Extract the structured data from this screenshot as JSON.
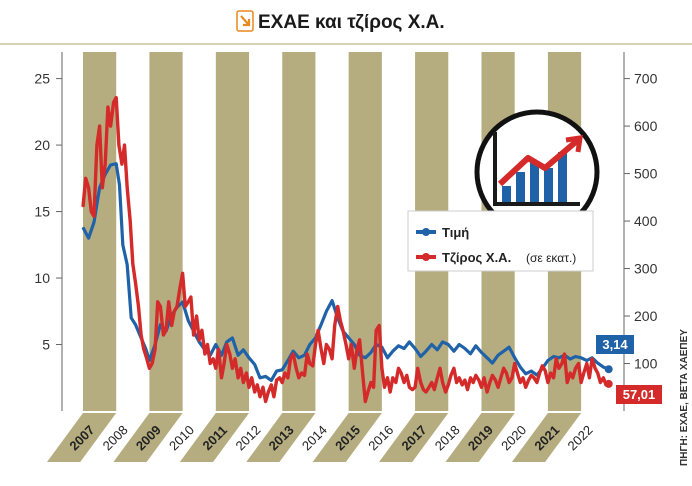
{
  "header": {
    "title": "ΕΧΑΕ και τζίρος Χ.Α.",
    "icon": "arrow-down-right-icon",
    "accent_color": "#e8891e"
  },
  "source_note": "ΠΗΓΗ: ΕΧΑΕ, ΒΕΤΑ ΧΑΕΠΕΥ",
  "legend": [
    {
      "label": "Τιμή",
      "color": "#1f62a8"
    },
    {
      "label": "Τζίρος Χ.Α.",
      "sublabel": "(σε εκατ.)",
      "color": "#d42a2a"
    }
  ],
  "end_labels": {
    "price": {
      "text": "3,14",
      "color": "#1f62a8"
    },
    "turnover": {
      "text": "57,01",
      "color": "#d42a2a"
    }
  },
  "decor_icon": "growth-chart-icon",
  "colors": {
    "stripe": "#b5ad80",
    "year_band": "#b5ad80",
    "price": "#1f62a8",
    "turnover": "#d42a2a",
    "axis_line": "#666666"
  },
  "chart_data": {
    "type": "line",
    "title": "ΕΧΑΕ και τζίρος Χ.Α.",
    "x_categories": [
      "2007",
      "2008",
      "2009",
      "2010",
      "2011",
      "2012",
      "2013",
      "2014",
      "2015",
      "2016",
      "2017",
      "2018",
      "2019",
      "2020",
      "2021",
      "2022"
    ],
    "x_range": [
      2007.0,
      2022.9
    ],
    "y_left": {
      "range": [
        0,
        27
      ],
      "ticks": [
        5,
        10,
        15,
        20,
        25
      ],
      "unit": ""
    },
    "y_right": {
      "range": [
        0,
        756
      ],
      "ticks": [
        100,
        200,
        300,
        400,
        500,
        600,
        700
      ],
      "unit": ""
    },
    "grid": false,
    "legend_position": "right",
    "series": [
      {
        "name": "Τιμή",
        "axis": "left",
        "points": [
          [
            2007.0,
            13.8
          ],
          [
            2007.17,
            13.0
          ],
          [
            2007.33,
            14.2
          ],
          [
            2007.5,
            16.8
          ],
          [
            2007.67,
            17.8
          ],
          [
            2007.83,
            18.5
          ],
          [
            2008.0,
            18.6
          ],
          [
            2008.1,
            17.0
          ],
          [
            2008.2,
            12.5
          ],
          [
            2008.33,
            11.0
          ],
          [
            2008.45,
            7.0
          ],
          [
            2008.58,
            6.5
          ],
          [
            2008.75,
            5.5
          ],
          [
            2008.9,
            4.6
          ],
          [
            2009.0,
            3.8
          ],
          [
            2009.17,
            5.0
          ],
          [
            2009.33,
            6.5
          ],
          [
            2009.5,
            6.0
          ],
          [
            2009.67,
            7.2
          ],
          [
            2009.83,
            7.8
          ],
          [
            2010.0,
            8.2
          ],
          [
            2010.17,
            6.8
          ],
          [
            2010.33,
            6.0
          ],
          [
            2010.5,
            5.2
          ],
          [
            2010.67,
            4.6
          ],
          [
            2010.83,
            4.2
          ],
          [
            2011.0,
            5.0
          ],
          [
            2011.17,
            4.2
          ],
          [
            2011.33,
            5.2
          ],
          [
            2011.5,
            5.5
          ],
          [
            2011.67,
            4.2
          ],
          [
            2011.83,
            4.6
          ],
          [
            2012.0,
            4.0
          ],
          [
            2012.17,
            3.5
          ],
          [
            2012.33,
            2.5
          ],
          [
            2012.5,
            2.6
          ],
          [
            2012.67,
            2.3
          ],
          [
            2012.83,
            3.0
          ],
          [
            2013.0,
            3.1
          ],
          [
            2013.17,
            3.8
          ],
          [
            2013.33,
            4.5
          ],
          [
            2013.5,
            4.0
          ],
          [
            2013.67,
            4.2
          ],
          [
            2013.83,
            5.0
          ],
          [
            2014.0,
            5.5
          ],
          [
            2014.17,
            6.5
          ],
          [
            2014.33,
            7.5
          ],
          [
            2014.5,
            8.3
          ],
          [
            2014.67,
            7.0
          ],
          [
            2014.83,
            6.0
          ],
          [
            2015.0,
            5.5
          ],
          [
            2015.17,
            5.0
          ],
          [
            2015.33,
            4.2
          ],
          [
            2015.5,
            4.0
          ],
          [
            2015.67,
            4.4
          ],
          [
            2015.83,
            5.0
          ],
          [
            2016.0,
            4.8
          ],
          [
            2016.17,
            4.0
          ],
          [
            2016.33,
            4.5
          ],
          [
            2016.5,
            4.9
          ],
          [
            2016.67,
            4.7
          ],
          [
            2016.83,
            5.2
          ],
          [
            2017.0,
            4.7
          ],
          [
            2017.17,
            4.1
          ],
          [
            2017.33,
            4.5
          ],
          [
            2017.5,
            5.0
          ],
          [
            2017.67,
            4.6
          ],
          [
            2017.83,
            5.2
          ],
          [
            2018.0,
            5.0
          ],
          [
            2018.17,
            4.5
          ],
          [
            2018.33,
            5.0
          ],
          [
            2018.5,
            4.7
          ],
          [
            2018.67,
            4.3
          ],
          [
            2018.83,
            4.9
          ],
          [
            2019.0,
            4.4
          ],
          [
            2019.17,
            4.0
          ],
          [
            2019.33,
            3.6
          ],
          [
            2019.5,
            4.2
          ],
          [
            2019.67,
            4.5
          ],
          [
            2019.83,
            4.8
          ],
          [
            2020.0,
            4.0
          ],
          [
            2020.17,
            3.3
          ],
          [
            2020.33,
            2.8
          ],
          [
            2020.5,
            3.0
          ],
          [
            2020.67,
            2.7
          ],
          [
            2020.83,
            3.2
          ],
          [
            2021.0,
            3.8
          ],
          [
            2021.17,
            4.1
          ],
          [
            2021.33,
            4.0
          ],
          [
            2021.5,
            4.2
          ],
          [
            2021.67,
            3.9
          ],
          [
            2021.83,
            4.1
          ],
          [
            2022.0,
            4.0
          ],
          [
            2022.17,
            3.8
          ],
          [
            2022.33,
            4.0
          ],
          [
            2022.5,
            3.6
          ],
          [
            2022.67,
            3.3
          ],
          [
            2022.83,
            3.14
          ]
        ]
      },
      {
        "name": "Τζίρος Χ.Α.",
        "axis": "right",
        "points": [
          [
            2007.0,
            430
          ],
          [
            2007.08,
            490
          ],
          [
            2007.17,
            470
          ],
          [
            2007.25,
            420
          ],
          [
            2007.33,
            410
          ],
          [
            2007.42,
            560
          ],
          [
            2007.5,
            600
          ],
          [
            2007.58,
            470
          ],
          [
            2007.67,
            520
          ],
          [
            2007.75,
            640
          ],
          [
            2007.83,
            600
          ],
          [
            2007.92,
            650
          ],
          [
            2008.0,
            660
          ],
          [
            2008.08,
            560
          ],
          [
            2008.17,
            520
          ],
          [
            2008.25,
            560
          ],
          [
            2008.33,
            470
          ],
          [
            2008.42,
            400
          ],
          [
            2008.5,
            310
          ],
          [
            2008.58,
            270
          ],
          [
            2008.67,
            220
          ],
          [
            2008.75,
            160
          ],
          [
            2008.83,
            130
          ],
          [
            2008.92,
            110
          ],
          [
            2009.0,
            90
          ],
          [
            2009.08,
            100
          ],
          [
            2009.17,
            130
          ],
          [
            2009.25,
            230
          ],
          [
            2009.33,
            220
          ],
          [
            2009.42,
            160
          ],
          [
            2009.5,
            170
          ],
          [
            2009.58,
            230
          ],
          [
            2009.67,
            180
          ],
          [
            2009.75,
            210
          ],
          [
            2009.83,
            220
          ],
          [
            2009.92,
            260
          ],
          [
            2010.0,
            290
          ],
          [
            2010.08,
            220
          ],
          [
            2010.17,
            230
          ],
          [
            2010.25,
            240
          ],
          [
            2010.33,
            160
          ],
          [
            2010.42,
            200
          ],
          [
            2010.5,
            150
          ],
          [
            2010.58,
            170
          ],
          [
            2010.67,
            120
          ],
          [
            2010.75,
            140
          ],
          [
            2010.83,
            100
          ],
          [
            2010.92,
            110
          ],
          [
            2011.0,
            90
          ],
          [
            2011.08,
            130
          ],
          [
            2011.17,
            70
          ],
          [
            2011.25,
            100
          ],
          [
            2011.33,
            140
          ],
          [
            2011.42,
            120
          ],
          [
            2011.5,
            90
          ],
          [
            2011.58,
            110
          ],
          [
            2011.67,
            70
          ],
          [
            2011.75,
            90
          ],
          [
            2011.83,
            60
          ],
          [
            2011.92,
            80
          ],
          [
            2012.0,
            50
          ],
          [
            2012.08,
            70
          ],
          [
            2012.17,
            40
          ],
          [
            2012.25,
            55
          ],
          [
            2012.33,
            30
          ],
          [
            2012.42,
            50
          ],
          [
            2012.5,
            20
          ],
          [
            2012.58,
            40
          ],
          [
            2012.67,
            55
          ],
          [
            2012.75,
            30
          ],
          [
            2012.83,
            65
          ],
          [
            2012.92,
            70
          ],
          [
            2013.0,
            60
          ],
          [
            2013.08,
            80
          ],
          [
            2013.17,
            70
          ],
          [
            2013.25,
            110
          ],
          [
            2013.33,
            120
          ],
          [
            2013.42,
            90
          ],
          [
            2013.5,
            70
          ],
          [
            2013.58,
            80
          ],
          [
            2013.67,
            75
          ],
          [
            2013.75,
            120
          ],
          [
            2013.83,
            100
          ],
          [
            2013.92,
            95
          ],
          [
            2014.0,
            140
          ],
          [
            2014.08,
            170
          ],
          [
            2014.17,
            130
          ],
          [
            2014.25,
            100
          ],
          [
            2014.33,
            140
          ],
          [
            2014.42,
            130
          ],
          [
            2014.5,
            110
          ],
          [
            2014.58,
            180
          ],
          [
            2014.67,
            220
          ],
          [
            2014.75,
            190
          ],
          [
            2014.83,
            170
          ],
          [
            2014.92,
            140
          ],
          [
            2015.0,
            110
          ],
          [
            2015.08,
            140
          ],
          [
            2015.17,
            90
          ],
          [
            2015.25,
            130
          ],
          [
            2015.33,
            150
          ],
          [
            2015.42,
            80
          ],
          [
            2015.5,
            20
          ],
          [
            2015.58,
            40
          ],
          [
            2015.67,
            60
          ],
          [
            2015.75,
            50
          ],
          [
            2015.83,
            170
          ],
          [
            2015.92,
            180
          ],
          [
            2016.0,
            90
          ],
          [
            2016.08,
            50
          ],
          [
            2016.17,
            70
          ],
          [
            2016.25,
            40
          ],
          [
            2016.33,
            70
          ],
          [
            2016.42,
            60
          ],
          [
            2016.5,
            90
          ],
          [
            2016.58,
            80
          ],
          [
            2016.67,
            60
          ],
          [
            2016.75,
            75
          ],
          [
            2016.83,
            50
          ],
          [
            2016.92,
            45
          ],
          [
            2017.0,
            50
          ],
          [
            2017.08,
            90
          ],
          [
            2017.17,
            60
          ],
          [
            2017.25,
            45
          ],
          [
            2017.33,
            40
          ],
          [
            2017.42,
            50
          ],
          [
            2017.5,
            60
          ],
          [
            2017.58,
            45
          ],
          [
            2017.67,
            70
          ],
          [
            2017.75,
            90
          ],
          [
            2017.83,
            60
          ],
          [
            2017.92,
            40
          ],
          [
            2018.0,
            55
          ],
          [
            2018.08,
            75
          ],
          [
            2018.17,
            90
          ],
          [
            2018.25,
            60
          ],
          [
            2018.33,
            70
          ],
          [
            2018.42,
            55
          ],
          [
            2018.5,
            65
          ],
          [
            2018.58,
            45
          ],
          [
            2018.67,
            70
          ],
          [
            2018.75,
            60
          ],
          [
            2018.83,
            75
          ],
          [
            2018.92,
            65
          ],
          [
            2019.0,
            50
          ],
          [
            2019.08,
            70
          ],
          [
            2019.17,
            40
          ],
          [
            2019.25,
            60
          ],
          [
            2019.33,
            75
          ],
          [
            2019.42,
            65
          ],
          [
            2019.5,
            50
          ],
          [
            2019.58,
            70
          ],
          [
            2019.67,
            90
          ],
          [
            2019.75,
            80
          ],
          [
            2019.83,
            60
          ],
          [
            2019.92,
            70
          ],
          [
            2020.0,
            100
          ],
          [
            2020.08,
            80
          ],
          [
            2020.17,
            60
          ],
          [
            2020.25,
            70
          ],
          [
            2020.33,
            50
          ],
          [
            2020.42,
            65
          ],
          [
            2020.5,
            75
          ],
          [
            2020.58,
            70
          ],
          [
            2020.67,
            60
          ],
          [
            2020.75,
            80
          ],
          [
            2020.83,
            95
          ],
          [
            2020.92,
            85
          ],
          [
            2021.0,
            60
          ],
          [
            2021.08,
            80
          ],
          [
            2021.17,
            70
          ],
          [
            2021.25,
            110
          ],
          [
            2021.33,
            90
          ],
          [
            2021.42,
            100
          ],
          [
            2021.5,
            120
          ],
          [
            2021.58,
            60
          ],
          [
            2021.67,
            80
          ],
          [
            2021.75,
            70
          ],
          [
            2021.83,
            90
          ],
          [
            2021.92,
            100
          ],
          [
            2022.0,
            60
          ],
          [
            2022.08,
            80
          ],
          [
            2022.17,
            100
          ],
          [
            2022.25,
            70
          ],
          [
            2022.33,
            110
          ],
          [
            2022.42,
            90
          ],
          [
            2022.5,
            80
          ],
          [
            2022.58,
            60
          ],
          [
            2022.67,
            70
          ],
          [
            2022.75,
            55
          ],
          [
            2022.83,
            57.01
          ]
        ]
      }
    ]
  }
}
